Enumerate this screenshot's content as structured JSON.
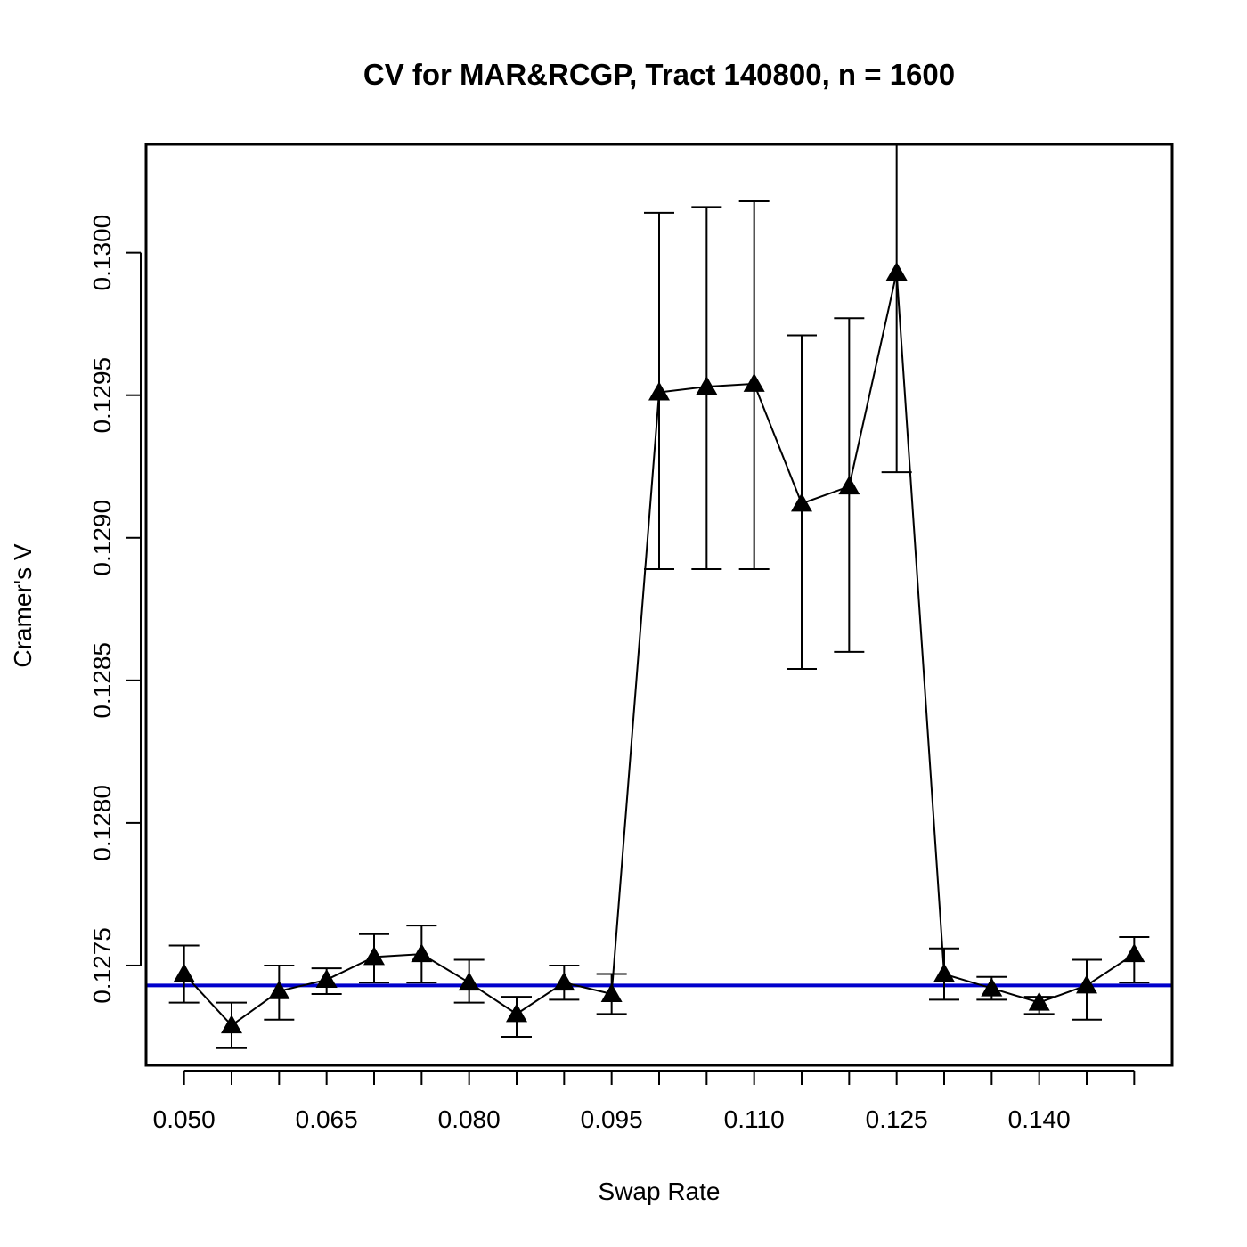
{
  "chart_data": {
    "type": "line",
    "title": "CV for MAR&RCGP, Tract 140800, n = 1600",
    "xlabel": "Swap Rate",
    "ylabel": "Cramer's V",
    "xlim": [
      0.046,
      0.154
    ],
    "ylim": [
      0.12715,
      0.13038
    ],
    "x_ticks": [
      0.05,
      0.055,
      0.06,
      0.065,
      0.07,
      0.075,
      0.08,
      0.085,
      0.09,
      0.095,
      0.1,
      0.105,
      0.11,
      0.115,
      0.12,
      0.125,
      0.13,
      0.135,
      0.14,
      0.145,
      0.15
    ],
    "x_tick_labels": [
      "0.050",
      "",
      "",
      "0.065",
      "",
      "",
      "0.080",
      "",
      "",
      "0.095",
      "",
      "",
      "0.110",
      "",
      "",
      "0.125",
      "",
      "",
      "0.140",
      "",
      ""
    ],
    "y_ticks": [
      0.1275,
      0.128,
      0.1285,
      0.129,
      0.1295,
      0.13
    ],
    "y_tick_labels": [
      "0.1275",
      "0.1280",
      "0.1285",
      "0.1290",
      "0.1295",
      "0.1300"
    ],
    "reference_line": {
      "y": 0.12743,
      "color": "#0000cc"
    },
    "series": [
      {
        "name": "Cramer's V",
        "marker": "triangle",
        "x": [
          0.05,
          0.055,
          0.06,
          0.065,
          0.07,
          0.075,
          0.08,
          0.085,
          0.09,
          0.095,
          0.1,
          0.105,
          0.11,
          0.115,
          0.12,
          0.125,
          0.13,
          0.135,
          0.14,
          0.145,
          0.15
        ],
        "y": [
          0.12747,
          0.12729,
          0.12741,
          0.12745,
          0.12753,
          0.12754,
          0.12744,
          0.12733,
          0.12744,
          0.1274,
          0.12951,
          0.12953,
          0.12954,
          0.12912,
          0.12918,
          0.12993,
          0.12747,
          0.12742,
          0.12737,
          0.12743,
          0.12754
        ],
        "lower": [
          0.12737,
          0.12721,
          0.12731,
          0.1274,
          0.12744,
          0.12744,
          0.12737,
          0.12725,
          0.12738,
          0.12733,
          0.12889,
          0.12889,
          0.12889,
          0.12854,
          0.1286,
          0.12923,
          0.12738,
          0.12738,
          0.12733,
          0.12731,
          0.12744
        ],
        "upper": [
          0.12757,
          0.12737,
          0.1275,
          0.12749,
          0.12761,
          0.12764,
          0.12752,
          0.12739,
          0.1275,
          0.12747,
          0.13014,
          0.13016,
          0.13018,
          0.12971,
          0.12977,
          0.1304,
          0.12756,
          0.12746,
          0.12739,
          0.12752,
          0.1276
        ]
      }
    ]
  }
}
